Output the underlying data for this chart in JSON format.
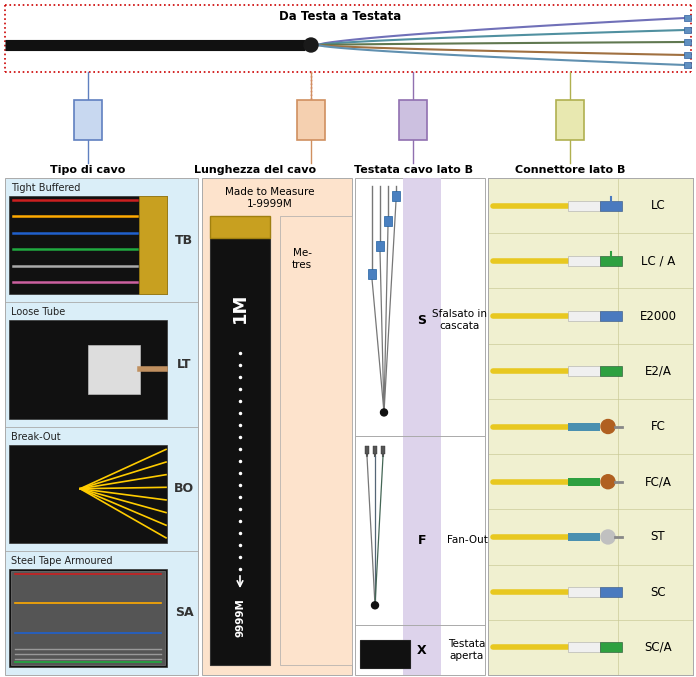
{
  "top_label": "Da Testa a Testata",
  "col_headers": [
    "Tipo di cavo",
    "Lunghezza del cavo",
    "Testata cavo lato B",
    "Connettore lato B"
  ],
  "cable_types": [
    {
      "label": "Tight Buffered",
      "code": "TB"
    },
    {
      "label": "Loose Tube",
      "code": "LT"
    },
    {
      "label": "Break-Out",
      "code": "BO"
    },
    {
      "label": "Steel Tape Armoured",
      "code": "SA"
    }
  ],
  "length_label1": "Made to Measure",
  "length_label2": "1-9999M",
  "length_unit": "Me-\ntres",
  "termination_types": [
    {
      "code": "S",
      "label": "Sfalsato in\ncascata"
    },
    {
      "code": "F",
      "label": "Fan-Out"
    },
    {
      "code": "X",
      "label": "Testata\naperta"
    }
  ],
  "connectors": [
    {
      "name": "LC",
      "body_color": "#4a7abf",
      "tip_color": "#4a7abf",
      "angled": false,
      "type": "lc"
    },
    {
      "name": "LC / A",
      "body_color": "#2ea040",
      "tip_color": "#2ea040",
      "angled": true,
      "type": "lc"
    },
    {
      "name": "E2000",
      "body_color": "#4a7abf",
      "tip_color": "#4a7abf",
      "angled": false,
      "type": "e2000"
    },
    {
      "name": "E2/A",
      "body_color": "#2ea040",
      "tip_color": "#2ea040",
      "angled": true,
      "type": "e2000"
    },
    {
      "name": "FC",
      "body_color": "#4a90b0",
      "tip_color": "#b06020",
      "angled": false,
      "type": "fc"
    },
    {
      "name": "FC/A",
      "body_color": "#2ea040",
      "tip_color": "#b06020",
      "angled": true,
      "type": "fc"
    },
    {
      "name": "ST",
      "body_color": "#808080",
      "tip_color": "#c0c0c0",
      "angled": false,
      "type": "st"
    },
    {
      "name": "SC",
      "body_color": "#4a7abf",
      "tip_color": "#4a7abf",
      "angled": false,
      "type": "sc"
    },
    {
      "name": "SC/A",
      "body_color": "#2ea040",
      "tip_color": "#2ea040",
      "angled": true,
      "type": "sc"
    }
  ],
  "bg_color": "#ffffff",
  "col1_bg": "#daeef8",
  "col2_bg": "#fde3cc",
  "col3_bg": "#d8cce8",
  "col4_bg": "#f0f0d0",
  "box_fills": [
    "#c8d8f0",
    "#f5d0b0",
    "#ccc0e0",
    "#e8e8b0"
  ],
  "box_edges": [
    "#6080c0",
    "#d09060",
    "#9070b0",
    "#b0b050"
  ],
  "fiber_colors_top": [
    "#7070b8",
    "#5090a0",
    "#607850",
    "#a07040",
    "#6090b0"
  ],
  "connector_end_color": "#6090c0",
  "dotted_red": "#cc0000",
  "cable_black": "#111111",
  "gold_color": "#c8a020"
}
